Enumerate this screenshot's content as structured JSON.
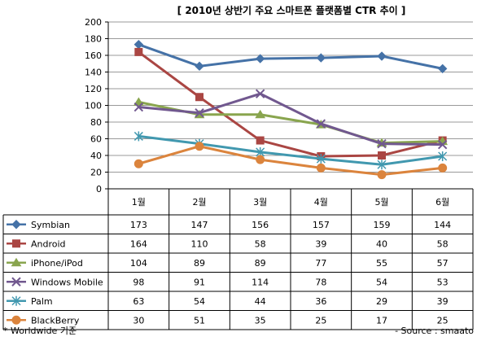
{
  "chart_data": {
    "type": "line",
    "title": "[ 2010년 상반기 주요 스마트폰 플랫폼별 CTR 추이 ]",
    "categories": [
      "1월",
      "2월",
      "3월",
      "4월",
      "5월",
      "6월"
    ],
    "ylim": [
      0,
      200
    ],
    "yticks": [
      0,
      20,
      40,
      60,
      80,
      100,
      120,
      140,
      160,
      180,
      200
    ],
    "grid": true,
    "series": [
      {
        "name": "Symbian",
        "values": [
          173,
          147,
          156,
          157,
          159,
          144
        ],
        "color": "#4572A7",
        "marker": "diamond"
      },
      {
        "name": "Android",
        "values": [
          164,
          110,
          58,
          39,
          40,
          58
        ],
        "color": "#AA4643",
        "marker": "square"
      },
      {
        "name": "iPhone/iPod",
        "values": [
          104,
          89,
          89,
          77,
          55,
          57
        ],
        "color": "#89A54E",
        "marker": "triangle"
      },
      {
        "name": "Windows Mobile",
        "values": [
          98,
          91,
          114,
          78,
          54,
          53
        ],
        "color": "#71588F",
        "marker": "x"
      },
      {
        "name": "Palm",
        "values": [
          63,
          54,
          44,
          36,
          29,
          39
        ],
        "color": "#4198AF",
        "marker": "star"
      },
      {
        "name": "BlackBerry",
        "values": [
          30,
          51,
          35,
          25,
          17,
          25
        ],
        "color": "#DB843D",
        "marker": "circle"
      }
    ]
  },
  "footnote_left": "* Worldwide 기준",
  "footnote_right": "- Source : smaato"
}
